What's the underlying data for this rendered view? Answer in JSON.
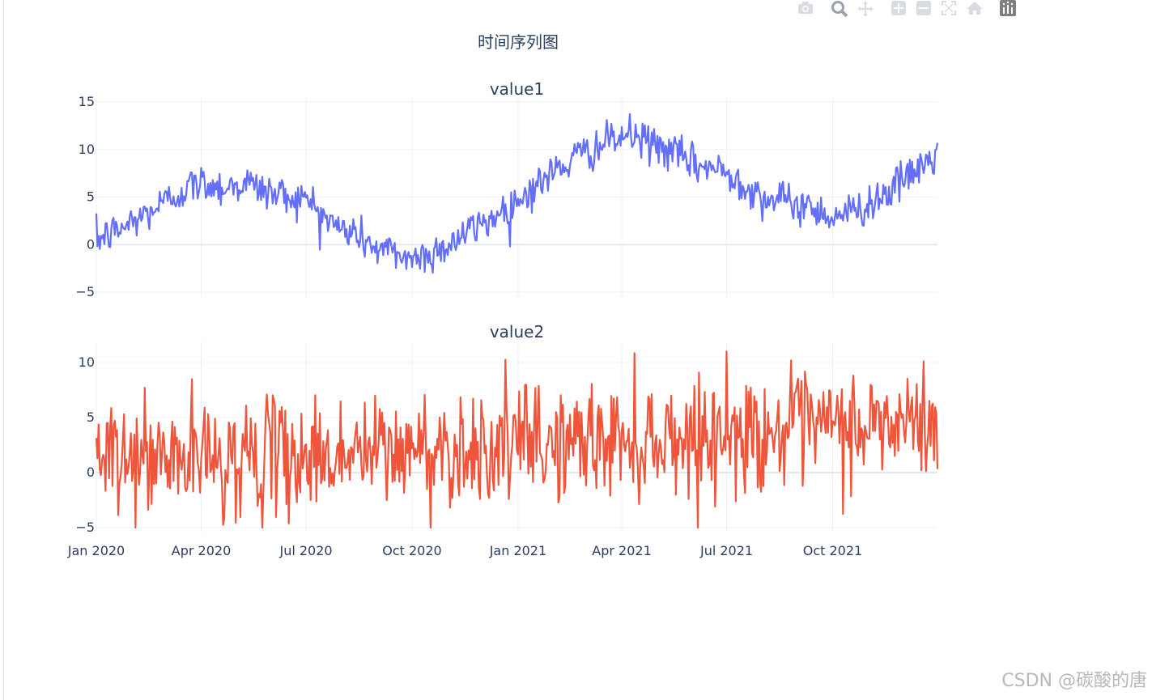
{
  "figure": {
    "title": "时间序列图",
    "watermark": "CSDN @碳酸的唐"
  },
  "toolbar": {
    "icons": [
      "camera-icon",
      "zoom-icon",
      "pan-icon",
      "zoom-in-icon",
      "zoom-out-icon",
      "autoscale-icon",
      "home-icon",
      "plotly-logo-icon"
    ]
  },
  "chart_data": [
    {
      "type": "line",
      "title": "value1",
      "x_start": "2020-01-01",
      "x_end": "2021-12-31",
      "x_ticks": [
        "Jan 2020",
        "Apr 2020",
        "Jul 2020",
        "Oct 2020",
        "Jan 2021",
        "Apr 2021",
        "Jul 2021",
        "Oct 2021"
      ],
      "y_ticks": [
        15,
        10,
        5,
        0,
        -5
      ],
      "ylim": [
        -5.5,
        15.5
      ],
      "color": "#636efa",
      "series": [
        {
          "x": [
            "2020-01-01",
            "2020-01-20",
            "2020-02-10",
            "2020-03-01",
            "2020-03-20",
            "2020-04-05",
            "2020-04-20",
            "2020-05-10",
            "2020-05-30",
            "2020-06-20",
            "2020-07-05",
            "2020-07-25",
            "2020-08-15",
            "2020-09-01",
            "2020-09-20",
            "2020-10-05",
            "2020-10-25",
            "2020-11-15",
            "2020-12-05",
            "2020-12-25",
            "2021-01-15",
            "2021-02-05",
            "2021-02-25",
            "2021-03-15",
            "2021-04-05",
            "2021-04-20",
            "2021-05-10",
            "2021-06-01",
            "2021-06-20",
            "2021-07-10",
            "2021-08-01",
            "2021-08-20",
            "2021-09-10",
            "2021-10-01",
            "2021-10-20",
            "2021-11-10",
            "2021-11-30",
            "2021-12-20",
            "2021-12-31"
          ],
          "y": [
            0.5,
            1.5,
            3,
            4.5,
            6,
            6.5,
            6,
            6.5,
            5.5,
            5,
            4.5,
            2,
            1,
            -0.5,
            -1,
            -1.5,
            -0.5,
            1,
            2.5,
            4,
            6,
            8,
            9.5,
            10.5,
            11.5,
            11,
            10,
            8.5,
            8,
            7,
            5,
            4.5,
            4,
            3,
            3.5,
            5,
            6.5,
            8.5,
            9.5
          ],
          "noise": 1.0
        }
      ]
    },
    {
      "type": "line",
      "title": "value2",
      "x_start": "2020-01-01",
      "x_end": "2021-12-31",
      "x_ticks": [
        "Jan 2020",
        "Apr 2020",
        "Jul 2020",
        "Oct 2020",
        "Jan 2021",
        "Apr 2021",
        "Jul 2021",
        "Oct 2021"
      ],
      "y_ticks": [
        10,
        5,
        0,
        -5
      ],
      "ylim": [
        -5,
        11
      ],
      "color": "#ef553b",
      "series": [
        {
          "x": [
            "2020-01-01",
            "2020-07-01",
            "2021-01-01",
            "2021-07-01",
            "2021-12-31"
          ],
          "y": [
            1,
            1.5,
            2.5,
            3.5,
            4.5
          ],
          "noise": 2.6
        }
      ]
    }
  ]
}
